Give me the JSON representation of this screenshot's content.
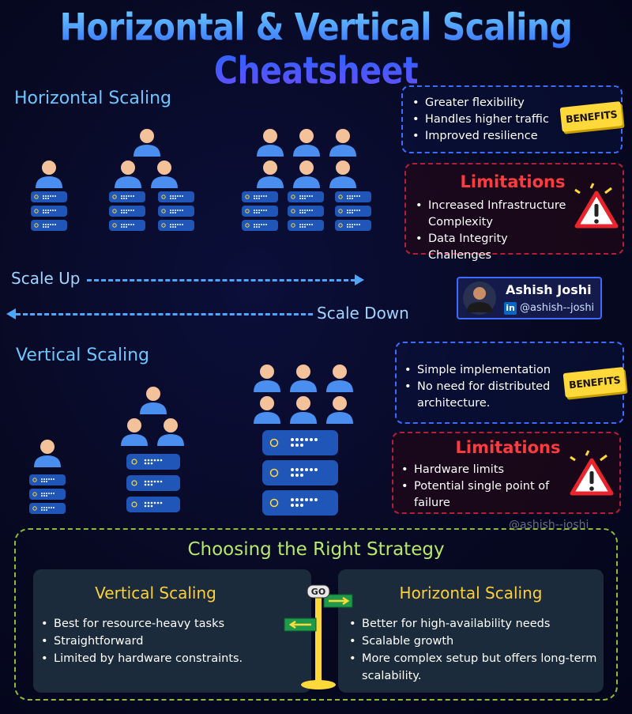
{
  "title": "Horizontal & Vertical Scaling Cheatsheet",
  "horizontal": {
    "heading": "Horizontal Scaling",
    "benefits": {
      "badge": "BENEFITS",
      "items": [
        "Greater flexibility",
        "Handles higher traffic",
        "Improved resilience"
      ]
    },
    "limitations": {
      "heading": "Limitations",
      "items": [
        "Increased Infrastructure Complexity",
        "Data Integrity Challenges"
      ]
    }
  },
  "scale": {
    "up_label": "Scale Up",
    "down_label": "Scale Down"
  },
  "author": {
    "name": "Ashish Joshi",
    "handle": "@ashish--joshi",
    "network": "in"
  },
  "vertical": {
    "heading": "Vertical Scaling",
    "benefits": {
      "badge": "BENEFITS",
      "items": [
        "Simple implementation",
        "No need for distributed architecture."
      ]
    },
    "limitations": {
      "heading": "Limitations",
      "items": [
        "Hardware limits",
        "Potential single point of failure"
      ]
    }
  },
  "watermark": "@ashish--joshi",
  "strategy": {
    "heading": "Choosing the Right Strategy",
    "vertical": {
      "heading": "Vertical Scaling",
      "items": [
        "Best for resource-heavy tasks",
        "Straightforward",
        "Limited by hardware constraints."
      ]
    },
    "horizontal": {
      "heading": "Horizontal Scaling",
      "items": [
        "Better for high-availability needs",
        "Scalable growth",
        "More complex setup but offers long-term scalability."
      ]
    },
    "signpost_label": "GO"
  },
  "colors": {
    "server": "#1f56b8",
    "person_head": "#f4c29a",
    "person_body": "#4a8ef0",
    "benefits_border": "#3b6cff",
    "limit_border": "#b0203a",
    "limit_title": "#ff3b40",
    "badge": "#ffd93a",
    "strategy_border": "#8bbd3a",
    "panel_title": "#ffcf3a"
  },
  "icons": [
    "person-icon",
    "server-icon",
    "warning-icon",
    "linkedin-icon",
    "signpost-icon"
  ]
}
